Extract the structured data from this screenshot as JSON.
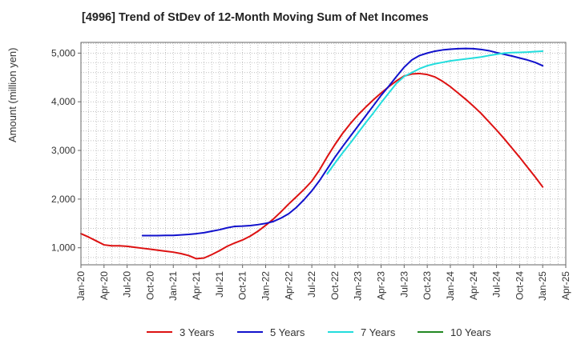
{
  "chart_data": {
    "type": "line",
    "title": "[4996]  Trend of StDev of 12-Month Moving Sum of Net Incomes",
    "ylabel": "Amount (million yen)",
    "xlabel": "",
    "ylim": [
      650,
      5220
    ],
    "y_ticks": [
      1000,
      2000,
      3000,
      4000,
      5000
    ],
    "y_tick_labels": [
      "1,000",
      "2,000",
      "3,000",
      "4,000",
      "5,000"
    ],
    "x_tick_labels": [
      "Jan-20",
      "Apr-20",
      "Jul-20",
      "Oct-20",
      "Jan-21",
      "Apr-21",
      "Jul-21",
      "Oct-21",
      "Jan-22",
      "Apr-22",
      "Jul-22",
      "Oct-22",
      "Jan-23",
      "Apr-23",
      "Jul-23",
      "Oct-23",
      "Jan-24",
      "Apr-24",
      "Jul-24",
      "Oct-24",
      "Jan-25",
      "Apr-25"
    ],
    "grid": true,
    "legend_position": "bottom",
    "series": [
      {
        "name": "3 Years",
        "color": "#dd1111",
        "points": [
          [
            "Jan-20",
            1290
          ],
          [
            "Feb-20",
            1220
          ],
          [
            "Mar-20",
            1140
          ],
          [
            "Apr-20",
            1060
          ],
          [
            "May-20",
            1040
          ],
          [
            "Jun-20",
            1040
          ],
          [
            "Jul-20",
            1030
          ],
          [
            "Aug-20",
            1010
          ],
          [
            "Sep-20",
            990
          ],
          [
            "Oct-20",
            970
          ],
          [
            "Nov-20",
            950
          ],
          [
            "Dec-20",
            930
          ],
          [
            "Jan-21",
            910
          ],
          [
            "Feb-21",
            880
          ],
          [
            "Mar-21",
            840
          ],
          [
            "Apr-21",
            775
          ],
          [
            "May-21",
            790
          ],
          [
            "Jun-21",
            860
          ],
          [
            "Jul-21",
            940
          ],
          [
            "Aug-21",
            1030
          ],
          [
            "Sep-21",
            1100
          ],
          [
            "Oct-21",
            1160
          ],
          [
            "Nov-21",
            1240
          ],
          [
            "Dec-21",
            1340
          ],
          [
            "Jan-22",
            1460
          ],
          [
            "Feb-22",
            1590
          ],
          [
            "Mar-22",
            1740
          ],
          [
            "Apr-22",
            1900
          ],
          [
            "May-22",
            2050
          ],
          [
            "Jun-22",
            2200
          ],
          [
            "Jul-22",
            2370
          ],
          [
            "Aug-22",
            2600
          ],
          [
            "Sep-22",
            2870
          ],
          [
            "Oct-22",
            3120
          ],
          [
            "Nov-22",
            3350
          ],
          [
            "Dec-22",
            3550
          ],
          [
            "Jan-23",
            3730
          ],
          [
            "Feb-23",
            3890
          ],
          [
            "Mar-23",
            4040
          ],
          [
            "Apr-23",
            4180
          ],
          [
            "May-23",
            4310
          ],
          [
            "Jun-23",
            4430
          ],
          [
            "Jul-23",
            4530
          ],
          [
            "Aug-23",
            4570
          ],
          [
            "Sep-23",
            4580
          ],
          [
            "Oct-23",
            4560
          ],
          [
            "Nov-23",
            4510
          ],
          [
            "Dec-23",
            4420
          ],
          [
            "Jan-24",
            4310
          ],
          [
            "Feb-24",
            4180
          ],
          [
            "Mar-24",
            4050
          ],
          [
            "Apr-24",
            3910
          ],
          [
            "May-24",
            3760
          ],
          [
            "Jun-24",
            3590
          ],
          [
            "Jul-24",
            3420
          ],
          [
            "Aug-24",
            3240
          ],
          [
            "Sep-24",
            3050
          ],
          [
            "Oct-24",
            2860
          ],
          [
            "Nov-24",
            2660
          ],
          [
            "Dec-24",
            2460
          ],
          [
            "Jan-25",
            2250
          ]
        ]
      },
      {
        "name": "5 Years",
        "color": "#1111cc",
        "points": [
          [
            "Sep-20",
            1250
          ],
          [
            "Oct-20",
            1250
          ],
          [
            "Nov-20",
            1250
          ],
          [
            "Dec-20",
            1255
          ],
          [
            "Jan-21",
            1255
          ],
          [
            "Feb-21",
            1265
          ],
          [
            "Mar-21",
            1275
          ],
          [
            "Apr-21",
            1290
          ],
          [
            "May-21",
            1310
          ],
          [
            "Jun-21",
            1340
          ],
          [
            "Jul-21",
            1370
          ],
          [
            "Aug-21",
            1410
          ],
          [
            "Sep-21",
            1440
          ],
          [
            "Oct-21",
            1445
          ],
          [
            "Nov-21",
            1455
          ],
          [
            "Dec-21",
            1475
          ],
          [
            "Jan-22",
            1500
          ],
          [
            "Feb-22",
            1540
          ],
          [
            "Mar-22",
            1610
          ],
          [
            "Apr-22",
            1700
          ],
          [
            "May-22",
            1830
          ],
          [
            "Jun-22",
            1990
          ],
          [
            "Jul-22",
            2170
          ],
          [
            "Aug-22",
            2380
          ],
          [
            "Sep-22",
            2620
          ],
          [
            "Oct-22",
            2860
          ],
          [
            "Nov-22",
            3080
          ],
          [
            "Dec-22",
            3290
          ],
          [
            "Jan-23",
            3500
          ],
          [
            "Feb-23",
            3710
          ],
          [
            "Mar-23",
            3920
          ],
          [
            "Apr-23",
            4130
          ],
          [
            "May-23",
            4320
          ],
          [
            "Jun-23",
            4520
          ],
          [
            "Jul-23",
            4710
          ],
          [
            "Aug-23",
            4860
          ],
          [
            "Sep-23",
            4950
          ],
          [
            "Oct-23",
            5000
          ],
          [
            "Nov-23",
            5040
          ],
          [
            "Dec-23",
            5065
          ],
          [
            "Jan-24",
            5080
          ],
          [
            "Feb-24",
            5090
          ],
          [
            "Mar-24",
            5095
          ],
          [
            "Apr-24",
            5090
          ],
          [
            "May-24",
            5075
          ],
          [
            "Jun-24",
            5050
          ],
          [
            "Jul-24",
            5010
          ],
          [
            "Aug-24",
            4975
          ],
          [
            "Sep-24",
            4940
          ],
          [
            "Oct-24",
            4900
          ],
          [
            "Nov-24",
            4860
          ],
          [
            "Dec-24",
            4810
          ],
          [
            "Jan-25",
            4740
          ]
        ]
      },
      {
        "name": "7 Years",
        "color": "#22dddd",
        "points": [
          [
            "Sep-22",
            2520
          ],
          [
            "Oct-22",
            2740
          ],
          [
            "Nov-22",
            2950
          ],
          [
            "Dec-22",
            3150
          ],
          [
            "Jan-23",
            3360
          ],
          [
            "Feb-23",
            3570
          ],
          [
            "Mar-23",
            3770
          ],
          [
            "Apr-23",
            3980
          ],
          [
            "May-23",
            4180
          ],
          [
            "Jun-23",
            4380
          ],
          [
            "Jul-23",
            4520
          ],
          [
            "Aug-23",
            4600
          ],
          [
            "Sep-23",
            4680
          ],
          [
            "Oct-23",
            4740
          ],
          [
            "Nov-23",
            4780
          ],
          [
            "Dec-23",
            4810
          ],
          [
            "Jan-24",
            4840
          ],
          [
            "Feb-24",
            4860
          ],
          [
            "Mar-24",
            4880
          ],
          [
            "Apr-24",
            4900
          ],
          [
            "May-24",
            4920
          ],
          [
            "Jun-24",
            4950
          ],
          [
            "Jul-24",
            4975
          ],
          [
            "Aug-24",
            5000
          ],
          [
            "Sep-24",
            5010
          ],
          [
            "Oct-24",
            5015
          ],
          [
            "Nov-24",
            5020
          ],
          [
            "Dec-24",
            5030
          ],
          [
            "Jan-25",
            5040
          ]
        ]
      },
      {
        "name": "10 Years",
        "color": "#228822",
        "points": []
      }
    ]
  }
}
